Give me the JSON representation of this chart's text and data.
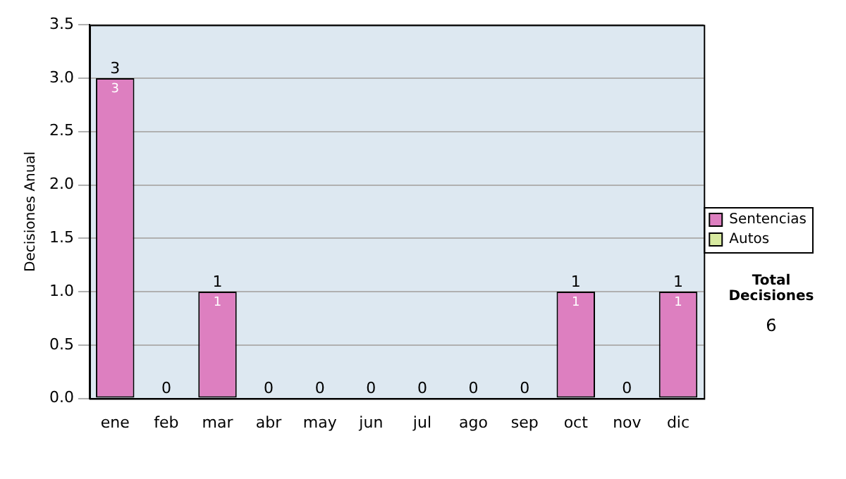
{
  "chart_data": {
    "type": "bar",
    "stacked": true,
    "ylabel": "Decisiones Anual",
    "categories": [
      "ene",
      "feb",
      "mar",
      "abr",
      "may",
      "jun",
      "jul",
      "ago",
      "sep",
      "oct",
      "nov",
      "dic"
    ],
    "series": [
      {
        "name": "Sentencias",
        "color": "#dd7fc0",
        "values": [
          3,
          0,
          1,
          0,
          0,
          0,
          0,
          0,
          0,
          1,
          0,
          1
        ],
        "value_labels": [
          "3",
          null,
          "1",
          null,
          null,
          null,
          null,
          null,
          null,
          "1",
          null,
          "1"
        ]
      },
      {
        "name": "Autos",
        "color": "#d8eaa0",
        "values": [
          0,
          0,
          0,
          0,
          0,
          0,
          0,
          0,
          0,
          0,
          0,
          0
        ]
      }
    ],
    "totals": [
      "3",
      "0",
      "1",
      "0",
      "0",
      "0",
      "0",
      "0",
      "0",
      "1",
      "0",
      "1"
    ],
    "ylim": [
      0,
      3.5
    ],
    "yticks": [
      {
        "value": 0,
        "label": "0.0"
      },
      {
        "value": 0.5,
        "label": "0.5"
      },
      {
        "value": 1,
        "label": "1.0"
      },
      {
        "value": 1.5,
        "label": "1.5"
      },
      {
        "value": 2,
        "label": "2.0"
      },
      {
        "value": 2.5,
        "label": "2.5"
      },
      {
        "value": 3,
        "label": "3.0"
      },
      {
        "value": 3.5,
        "label": "3.5"
      }
    ],
    "grid": "y",
    "legend": "right",
    "annotations": [
      "Total Decisiones",
      "6"
    ]
  }
}
